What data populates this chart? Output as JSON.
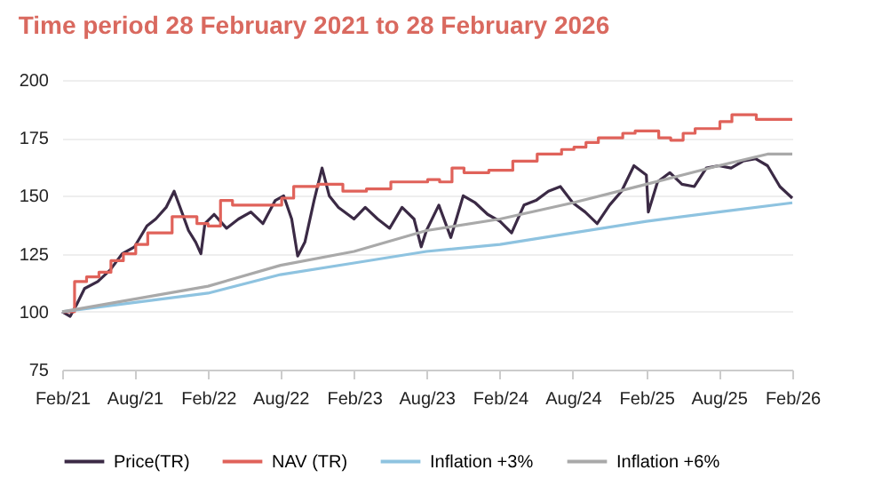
{
  "chart_data": {
    "type": "line",
    "title": "Time period 28 February 2021 to 28 February 2026",
    "xlim": [
      "2021-02-28",
      "2026-02-28"
    ],
    "xticks": [
      {
        "value": "2021-02-28",
        "label": "Feb/21"
      },
      {
        "value": "2021-08-28",
        "label": "Aug/21"
      },
      {
        "value": "2022-02-28",
        "label": "Feb/22"
      },
      {
        "value": "2022-08-28",
        "label": "Aug/22"
      },
      {
        "value": "2023-02-28",
        "label": "Feb/23"
      },
      {
        "value": "2023-08-28",
        "label": "Aug/23"
      },
      {
        "value": "2024-02-28",
        "label": "Feb/24"
      },
      {
        "value": "2024-08-28",
        "label": "Aug/24"
      },
      {
        "value": "2025-02-28",
        "label": "Feb/25"
      },
      {
        "value": "2025-08-28",
        "label": "Aug/25"
      },
      {
        "value": "2026-02-28",
        "label": "Feb/26"
      }
    ],
    "ylim": [
      75,
      200
    ],
    "yticks": [
      75,
      100,
      125,
      150,
      175,
      200
    ],
    "grid": "y",
    "legend": "bottom",
    "line_style": "solid",
    "marker": "none",
    "series": [
      {
        "name": "Price(TR)",
        "color": "#3b2a45",
        "x": [
          "2021-02-28",
          "2021-03-20",
          "2021-04-05",
          "2021-04-25",
          "2021-05-28",
          "2021-06-28",
          "2021-07-28",
          "2021-08-28",
          "2021-09-28",
          "2021-10-20",
          "2021-11-15",
          "2021-12-05",
          "2021-12-20",
          "2022-01-10",
          "2022-01-28",
          "2022-02-10",
          "2022-02-20",
          "2022-03-15",
          "2022-04-15",
          "2022-05-15",
          "2022-06-15",
          "2022-07-15",
          "2022-08-15",
          "2022-09-05",
          "2022-09-25",
          "2022-10-10",
          "2022-10-28",
          "2022-11-20",
          "2022-12-10",
          "2022-12-28",
          "2023-01-20",
          "2023-02-28",
          "2023-03-28",
          "2023-04-28",
          "2023-05-28",
          "2023-06-28",
          "2023-07-28",
          "2023-08-15",
          "2023-08-28",
          "2023-09-28",
          "2023-10-28",
          "2023-11-28",
          "2023-12-28",
          "2024-01-28",
          "2024-02-28",
          "2024-03-28",
          "2024-04-28",
          "2024-05-28",
          "2024-06-28",
          "2024-07-28",
          "2024-08-28",
          "2024-09-28",
          "2024-10-28",
          "2024-11-28",
          "2024-12-28",
          "2025-01-28",
          "2025-02-28",
          "2025-03-05",
          "2025-03-28",
          "2025-04-28",
          "2025-05-28",
          "2025-06-28",
          "2025-07-28",
          "2025-08-28",
          "2025-09-28",
          "2025-10-28",
          "2025-11-28",
          "2025-12-28",
          "2026-01-28",
          "2026-02-28"
        ],
        "values": [
          100,
          98,
          103,
          110,
          113,
          118,
          125,
          128,
          137,
          140,
          145,
          152,
          145,
          135,
          130,
          125,
          138,
          142,
          136,
          140,
          143,
          138,
          148,
          150,
          140,
          124,
          130,
          148,
          162,
          150,
          145,
          140,
          145,
          140,
          136,
          145,
          140,
          128,
          135,
          146,
          132,
          150,
          147,
          142,
          139,
          134,
          146,
          148,
          152,
          154,
          147,
          143,
          138,
          146,
          152,
          163,
          159,
          143,
          156,
          160,
          155,
          154,
          162,
          163,
          162,
          165,
          166,
          163,
          154,
          149
        ]
      },
      {
        "name": "NAV (TR)",
        "color": "#e0625a",
        "type": "step",
        "x": [
          "2021-02-28",
          "2021-03-31",
          "2021-04-30",
          "2021-05-31",
          "2021-06-30",
          "2021-07-31",
          "2021-08-31",
          "2021-09-30",
          "2021-10-31",
          "2021-11-30",
          "2021-12-31",
          "2022-01-31",
          "2022-02-28",
          "2022-03-31",
          "2022-04-30",
          "2022-07-31",
          "2022-08-31",
          "2022-09-30",
          "2022-11-30",
          "2023-01-31",
          "2023-03-31",
          "2023-05-31",
          "2023-08-31",
          "2023-09-30",
          "2023-10-31",
          "2023-11-30",
          "2024-01-31",
          "2024-03-31",
          "2024-05-31",
          "2024-07-31",
          "2024-08-31",
          "2024-09-30",
          "2024-10-31",
          "2024-12-31",
          "2025-01-31",
          "2025-03-31",
          "2025-04-30",
          "2025-05-31",
          "2025-06-30",
          "2025-08-31",
          "2025-09-30",
          "2025-10-31",
          "2025-11-30",
          "2026-02-28"
        ],
        "values": [
          100,
          113,
          115,
          117,
          122,
          125,
          129,
          134,
          134,
          141,
          141,
          138,
          137,
          148,
          146,
          146,
          149,
          154,
          155,
          152,
          153,
          156,
          157,
          156,
          162,
          160,
          161,
          165,
          168,
          170,
          171,
          173,
          175,
          177,
          178,
          175,
          174,
          177,
          179,
          182,
          185,
          185,
          183,
          183
        ]
      },
      {
        "name": "Inflation +3%",
        "color": "#8ec3e0",
        "x": [
          "2021-02-28",
          "2022-02-28",
          "2022-08-28",
          "2023-02-28",
          "2023-08-28",
          "2024-02-28",
          "2024-08-28",
          "2025-02-28",
          "2025-08-28",
          "2026-02-28"
        ],
        "values": [
          100,
          108,
          116,
          121,
          126,
          129,
          134,
          139,
          143,
          147
        ]
      },
      {
        "name": "Inflation +6%",
        "color": "#a9a9a9",
        "x": [
          "2021-02-28",
          "2022-02-28",
          "2022-08-28",
          "2023-02-28",
          "2023-08-28",
          "2024-02-28",
          "2024-08-28",
          "2025-02-28",
          "2025-08-28",
          "2025-12-28",
          "2026-02-28"
        ],
        "values": [
          100,
          111,
          120,
          126,
          135,
          140,
          147,
          155,
          163,
          168,
          168
        ]
      }
    ]
  }
}
